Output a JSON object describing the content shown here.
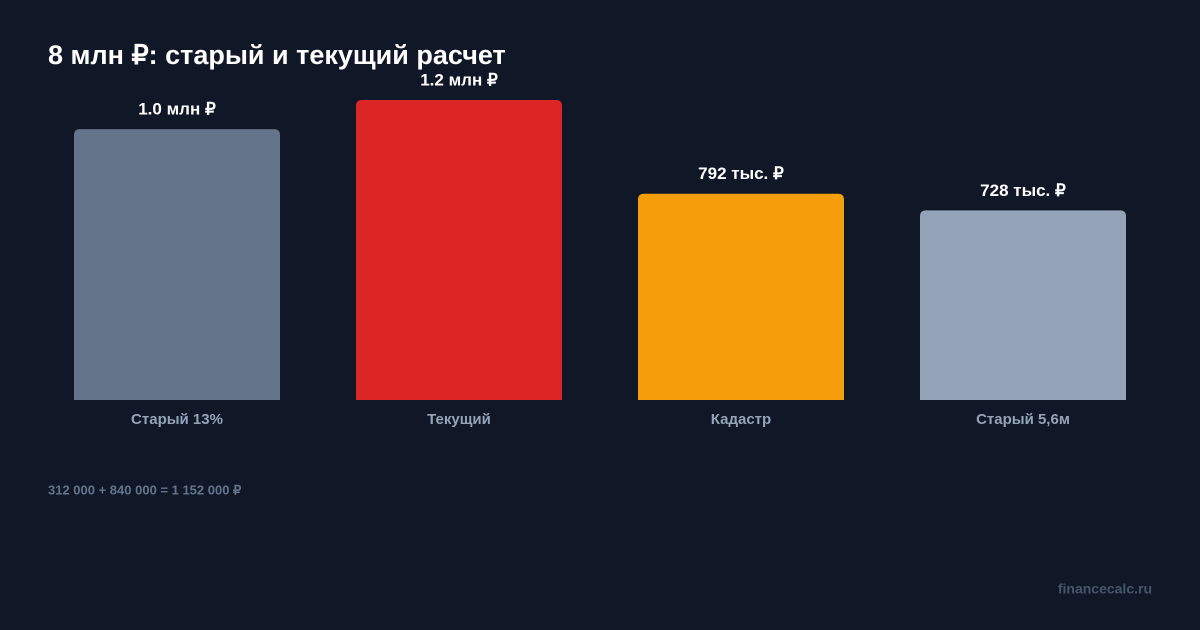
{
  "chart_data": {
    "type": "bar",
    "title": "8 млн ₽: старый и текущий расчет",
    "categories": [
      "Старый 13%",
      "Текущий",
      "Кадастр",
      "Старый 5,6м"
    ],
    "values": [
      1040000,
      1152000,
      792000,
      728000
    ],
    "value_labels": [
      "1.0 млн ₽",
      "1.2 млн ₽",
      "792 тыс. ₽",
      "728 тыс. ₽"
    ],
    "colors": [
      "#64748b",
      "#dc2626",
      "#f59e0b",
      "#94a3b8"
    ],
    "note": "312 000 + 840 000 = 1 152 000 ₽",
    "source": "financecalc.ru"
  }
}
